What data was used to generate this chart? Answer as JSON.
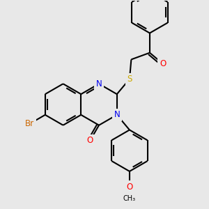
{
  "background_color": "#e8e8e8",
  "bond_lw": 1.5,
  "dbo": 0.06,
  "fs": 8.5,
  "figsize": [
    3.0,
    3.0
  ],
  "dpi": 100,
  "colors": {
    "N": "#0000ee",
    "O": "#ff0000",
    "S": "#ccaa00",
    "Br": "#cc6600",
    "C": "#000000"
  },
  "xlim": [
    -1.0,
    9.0
  ],
  "ylim": [
    -1.5,
    8.5
  ]
}
